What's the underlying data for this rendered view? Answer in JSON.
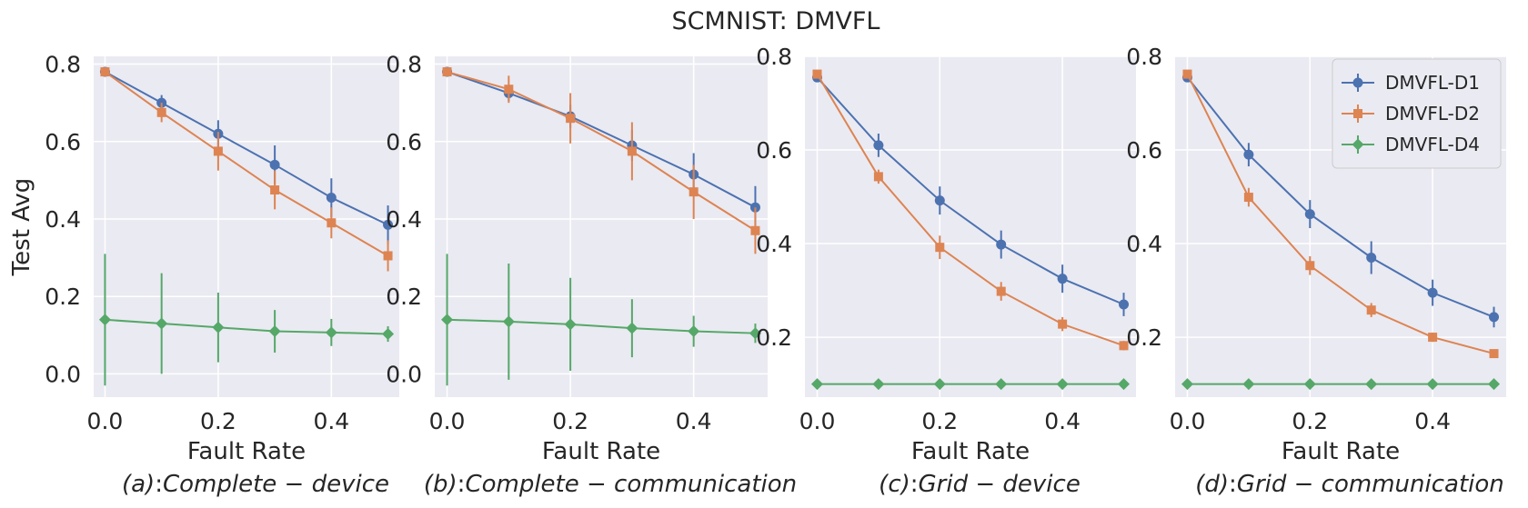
{
  "figure_title": "SCMNIST: DMVFL",
  "colors": {
    "D1": "#4c72b0",
    "D2": "#dd8452",
    "D4": "#55a868",
    "panel_bg": "#eaeaf2",
    "grid": "#ffffff"
  },
  "chart_data": [
    {
      "type": "line",
      "caption": "(a): Complete − device",
      "caption_prefix": "(a)",
      "caption_sep": ":",
      "caption_body": "Complete − device",
      "xlabel": "Fault Rate",
      "ylabel": "Test Avg",
      "xlim": [
        -0.02,
        0.52
      ],
      "ylim": [
        -0.06,
        0.82
      ],
      "xticks": [
        0.0,
        0.2,
        0.4
      ],
      "yticks": [
        0.0,
        0.2,
        0.4,
        0.6,
        0.8
      ],
      "x": [
        0.0,
        0.1,
        0.2,
        0.3,
        0.4,
        0.5
      ],
      "series": [
        {
          "name": "DMVFL-D1",
          "marker": "circle",
          "values": [
            0.78,
            0.7,
            0.62,
            0.54,
            0.455,
            0.385
          ],
          "errors": [
            0.0,
            0.02,
            0.035,
            0.05,
            0.05,
            0.05
          ]
        },
        {
          "name": "DMVFL-D2",
          "marker": "square",
          "values": [
            0.78,
            0.675,
            0.575,
            0.475,
            0.39,
            0.305
          ],
          "errors": [
            0.0,
            0.025,
            0.05,
            0.05,
            0.04,
            0.04
          ]
        },
        {
          "name": "DMVFL-D4",
          "marker": "diamond",
          "values": [
            0.14,
            0.13,
            0.12,
            0.11,
            0.107,
            0.103
          ],
          "errors": [
            0.17,
            0.13,
            0.09,
            0.055,
            0.035,
            0.02
          ]
        }
      ]
    },
    {
      "type": "line",
      "caption": "(b): Complete − communication",
      "caption_prefix": "(b)",
      "caption_sep": ":",
      "caption_body": "Complete − communication",
      "xlabel": "Fault Rate",
      "ylabel": "",
      "xlim": [
        -0.02,
        0.52
      ],
      "ylim": [
        -0.06,
        0.82
      ],
      "xticks": [
        0.0,
        0.2,
        0.4
      ],
      "yticks": [
        0.0,
        0.2,
        0.4,
        0.6,
        0.8
      ],
      "x": [
        0.0,
        0.1,
        0.2,
        0.3,
        0.4,
        0.5
      ],
      "series": [
        {
          "name": "DMVFL-D1",
          "marker": "circle",
          "values": [
            0.78,
            0.725,
            0.665,
            0.59,
            0.515,
            0.43
          ],
          "errors": [
            0.0,
            0.02,
            0.03,
            0.04,
            0.055,
            0.055
          ]
        },
        {
          "name": "DMVFL-D2",
          "marker": "square",
          "values": [
            0.78,
            0.735,
            0.66,
            0.575,
            0.47,
            0.37
          ],
          "errors": [
            0.0,
            0.035,
            0.065,
            0.075,
            0.07,
            0.06
          ]
        },
        {
          "name": "DMVFL-D4",
          "marker": "diamond",
          "values": [
            0.14,
            0.135,
            0.128,
            0.118,
            0.11,
            0.105
          ],
          "errors": [
            0.17,
            0.15,
            0.12,
            0.075,
            0.04,
            0.025
          ]
        }
      ]
    },
    {
      "type": "line",
      "caption": "(c): Grid − device",
      "caption_prefix": "(c)",
      "caption_sep": ":",
      "caption_body": "Grid − device",
      "xlabel": "Fault Rate",
      "ylabel": "",
      "xlim": [
        -0.02,
        0.52
      ],
      "ylim": [
        0.072,
        0.8
      ],
      "xticks": [
        0.0,
        0.2,
        0.4
      ],
      "yticks": [
        0.2,
        0.4,
        0.6,
        0.8
      ],
      "x": [
        0.0,
        0.1,
        0.2,
        0.3,
        0.4,
        0.5
      ],
      "series": [
        {
          "name": "DMVFL-D1",
          "marker": "circle",
          "values": [
            0.755,
            0.61,
            0.492,
            0.398,
            0.325,
            0.27
          ],
          "errors": [
            0.0,
            0.025,
            0.03,
            0.03,
            0.03,
            0.025
          ]
        },
        {
          "name": "DMVFL-D2",
          "marker": "square",
          "values": [
            0.762,
            0.543,
            0.392,
            0.298,
            0.228,
            0.182
          ],
          "errors": [
            0.0,
            0.015,
            0.025,
            0.02,
            0.015,
            0.01
          ]
        },
        {
          "name": "DMVFL-D4",
          "marker": "diamond",
          "values": [
            0.1,
            0.1,
            0.1,
            0.1,
            0.1,
            0.1
          ],
          "errors": [
            0.0,
            0.0,
            0.0,
            0.0,
            0.0,
            0.0
          ]
        }
      ]
    },
    {
      "type": "line",
      "caption": "(d): Grid − communication",
      "caption_prefix": "(d)",
      "caption_sep": ":",
      "caption_body": "Grid − communication",
      "xlabel": "Fault Rate",
      "ylabel": "",
      "xlim": [
        -0.02,
        0.52
      ],
      "ylim": [
        0.072,
        0.8
      ],
      "xticks": [
        0.0,
        0.2,
        0.4
      ],
      "yticks": [
        0.2,
        0.4,
        0.6,
        0.8
      ],
      "x": [
        0.0,
        0.1,
        0.2,
        0.3,
        0.4,
        0.5
      ],
      "legend": {
        "position": "top-right",
        "entries": [
          "DMVFL-D1",
          "DMVFL-D2",
          "DMVFL-D4"
        ]
      },
      "series": [
        {
          "name": "DMVFL-D1",
          "marker": "circle",
          "values": [
            0.755,
            0.59,
            0.463,
            0.37,
            0.295,
            0.243
          ],
          "errors": [
            0.0,
            0.025,
            0.03,
            0.035,
            0.028,
            0.022
          ]
        },
        {
          "name": "DMVFL-D2",
          "marker": "square",
          "values": [
            0.762,
            0.499,
            0.353,
            0.258,
            0.2,
            0.165
          ],
          "errors": [
            0.0,
            0.02,
            0.02,
            0.015,
            0.01,
            0.008
          ]
        },
        {
          "name": "DMVFL-D4",
          "marker": "diamond",
          "values": [
            0.1,
            0.1,
            0.1,
            0.1,
            0.1,
            0.1
          ],
          "errors": [
            0.0,
            0.0,
            0.0,
            0.0,
            0.0,
            0.0
          ]
        }
      ]
    }
  ]
}
